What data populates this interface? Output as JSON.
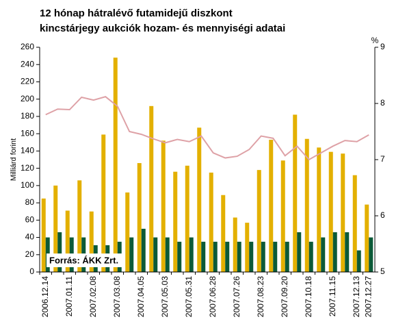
{
  "chart_data": {
    "type": "bar",
    "title": [
      "12 hónap hátralévő futamidejű diszkont",
      "kincstárjegy aukciók hozam- és mennyiségi adatai"
    ],
    "y_label": "Milliárd forint",
    "y2_label": "%",
    "source": "Forrás:  ÁKK Zrt.",
    "categories": [
      "2006.12.14",
      null,
      "2007.01.11",
      null,
      "2007.02.08",
      null,
      "2007.03.08",
      null,
      "2007.04.05",
      null,
      "2007.05.03",
      null,
      "2007.05.31",
      null,
      "2007.06.28",
      null,
      "2007.07.26",
      null,
      "2007.08.23",
      null,
      "2007.09.20",
      null,
      "2007.10.18",
      null,
      "2007.11.15",
      null,
      "2007.12.13",
      "2007.12.27"
    ],
    "series": [
      {
        "color": "#e3b000",
        "values": [
          85,
          100,
          71,
          106,
          70,
          159,
          248,
          92,
          126,
          192,
          152,
          116,
          123,
          167,
          115,
          89,
          63,
          57,
          118,
          153,
          129,
          182,
          154,
          144,
          139,
          137,
          112,
          78
        ]
      },
      {
        "color": "#0b5a38",
        "values": [
          40,
          46,
          40,
          40,
          31,
          31,
          35,
          40,
          50,
          40,
          40,
          35,
          40,
          35,
          35,
          35,
          35,
          35,
          35,
          35,
          35,
          46,
          35,
          40,
          46,
          46,
          25,
          40
        ]
      },
      {
        "color": "#dea1a6",
        "axis": "y2",
        "type": "line",
        "values": [
          7.8,
          7.9,
          7.89,
          8.11,
          8.06,
          8.12,
          7.95,
          7.5,
          7.45,
          7.37,
          7.3,
          7.36,
          7.32,
          7.42,
          7.12,
          7.03,
          7.06,
          7.18,
          7.42,
          7.38,
          7.07,
          7.24,
          7.0,
          7.12,
          7.24,
          7.34,
          7.32,
          7.44
        ]
      }
    ],
    "ylim": [
      0,
      260
    ],
    "yticks": [
      0,
      20,
      40,
      60,
      80,
      100,
      120,
      140,
      160,
      180,
      200,
      220,
      240,
      260
    ],
    "y2lim": [
      5,
      9
    ],
    "y2ticks": [
      5,
      6,
      7,
      8,
      9
    ]
  }
}
